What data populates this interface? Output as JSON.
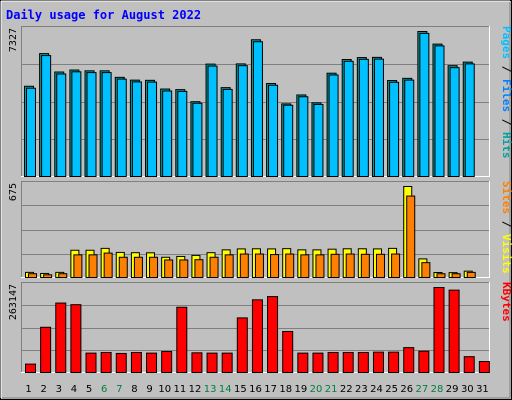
{
  "chart_data": {
    "type": "bar",
    "title": "Daily usage for August 2022",
    "categories": [
      "1",
      "2",
      "3",
      "4",
      "5",
      "6",
      "7",
      "8",
      "9",
      "10",
      "11",
      "12",
      "13",
      "14",
      "15",
      "16",
      "17",
      "18",
      "19",
      "20",
      "21",
      "22",
      "23",
      "24",
      "25",
      "26",
      "27",
      "28",
      "29",
      "30",
      "31"
    ],
    "weekend_days": [
      "6",
      "7",
      "13",
      "14",
      "20",
      "21",
      "27",
      "28"
    ],
    "panels": [
      {
        "id": "hits",
        "max_label": "7327",
        "ylim": [
          0,
          7327
        ],
        "legend": [
          "Hits",
          "Files",
          "Pages"
        ],
        "series": [
          {
            "name": "Hits",
            "color": "#00a0a0",
            "values": [
              4560,
              6210,
              5280,
              5380,
              5340,
              5340,
              5010,
              4870,
              4860,
              4420,
              4390,
              3780,
              5680,
              4490,
              5690,
              6910,
              4700,
              3670,
              4120,
              3720,
              5220,
              5910,
              6010,
              6020,
              4850,
              4960,
              7327,
              6690,
              5600,
              5780,
              0
            ]
          },
          {
            "name": "Files",
            "color": "#00c0ff",
            "values": [
              4460,
              6110,
              5180,
              5290,
              5250,
              5250,
              4920,
              4780,
              4770,
              4320,
              4300,
              3700,
              5580,
              4400,
              5600,
              6810,
              4610,
              3600,
              4030,
              3640,
              5130,
              5820,
              5920,
              5930,
              4760,
              4870,
              7230,
              6600,
              5500,
              5690,
              0
            ]
          },
          {
            "name": "Pages",
            "color": "#00c0ff",
            "values": [
              0,
              0,
              0,
              0,
              0,
              0,
              0,
              0,
              0,
              0,
              0,
              0,
              0,
              0,
              0,
              0,
              0,
              0,
              0,
              0,
              0,
              0,
              0,
              0,
              0,
              0,
              0,
              0,
              0,
              0,
              0
            ]
          }
        ]
      },
      {
        "id": "visits",
        "max_label": "675",
        "ylim": [
          0,
          675
        ],
        "legend": [
          "Visits",
          "Sites"
        ],
        "series": [
          {
            "name": "Visits",
            "color": "#ffff00",
            "values": [
              38,
              30,
              38,
              202,
              202,
              216,
              186,
              184,
              183,
              150,
              156,
              164,
              184,
              205,
              212,
              213,
              212,
              214,
              205,
              205,
              210,
              213,
              213,
              212,
              216,
              675,
              138,
              37,
              36,
              47,
              0
            ]
          },
          {
            "name": "Sites",
            "color": "#ff8000",
            "values": [
              28,
              20,
              28,
              168,
              168,
              181,
              150,
              150,
              150,
              130,
              130,
              132,
              150,
              168,
              174,
              174,
              170,
              174,
              168,
              168,
              172,
              174,
              172,
              172,
              174,
              604,
              110,
              28,
              28,
              38,
              0
            ]
          }
        ]
      },
      {
        "id": "kbytes",
        "max_label": "263147",
        "ylim": [
          0,
          263147
        ],
        "legend": [
          "KBytes"
        ],
        "series": [
          {
            "name": "KBytes",
            "color": "#ff0000",
            "values": [
              26000,
              140000,
              215000,
              210000,
              60000,
              62000,
              59000,
              62000,
              60000,
              65000,
              202000,
              61000,
              60000,
              60000,
              169000,
              225000,
              235000,
              127000,
              60000,
              60000,
              62000,
              62000,
              62000,
              63000,
              63000,
              77000,
              66000,
              263147,
              255000,
              49000,
              34000
            ]
          }
        ]
      }
    ]
  }
}
